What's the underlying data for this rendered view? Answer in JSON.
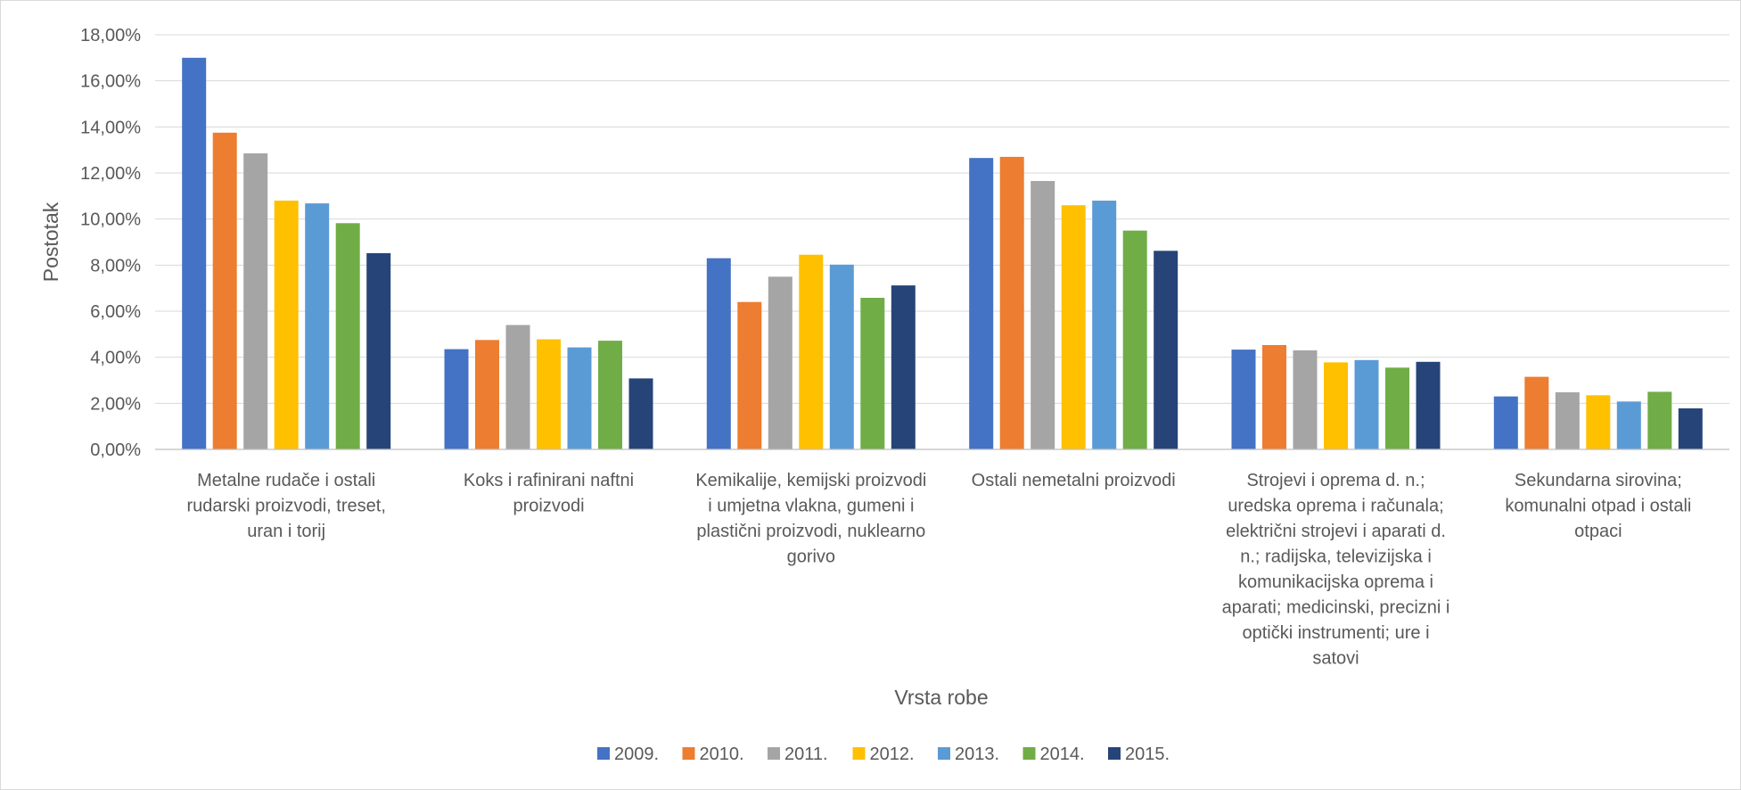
{
  "chart_data": {
    "type": "bar",
    "title": "",
    "xlabel": "Vrsta robe",
    "ylabel": "Postotak",
    "ylim": [
      0,
      18
    ],
    "yticks": [
      "0,00%",
      "2,00%",
      "4,00%",
      "6,00%",
      "8,00%",
      "10,00%",
      "12,00%",
      "14,00%",
      "16,00%",
      "18,00%"
    ],
    "grid": true,
    "legend_position": "bottom",
    "categories": [
      [
        "Metalne rudače i ostali",
        "rudarski proizvodi,  treset,",
        "uran i torij"
      ],
      [
        "Koks i rafinirani naftni",
        "proizvodi"
      ],
      [
        "Kemikalije, kemijski proizvodi",
        "i umjetna vlakna, gumeni i",
        "plastični proizvodi, nuklearno",
        "gorivo"
      ],
      [
        "Ostali nemetalni proizvodi"
      ],
      [
        "Strojevi i oprema d. n.;",
        "uredska oprema i računala;",
        "električni strojevi i aparati d.",
        "n.; radijska, televizijska  i",
        "komunikacijska oprema i",
        "aparati; medicinski,  precizni i",
        "optički instrumenti; ure i",
        "satovi"
      ],
      [
        "Sekundarna sirovina;",
        "komunalni otpad i ostali",
        "otpaci"
      ]
    ],
    "series": [
      {
        "name": "2009.",
        "color": "#4472c4",
        "values": [
          17.0,
          4.35,
          8.3,
          12.65,
          4.33,
          2.3
        ]
      },
      {
        "name": "2010.",
        "color": "#ed7d31",
        "values": [
          13.75,
          4.75,
          6.4,
          12.7,
          4.53,
          3.15
        ]
      },
      {
        "name": "2011.",
        "color": "#a5a5a5",
        "values": [
          12.85,
          5.4,
          7.5,
          11.65,
          4.3,
          2.48
        ]
      },
      {
        "name": "2012.",
        "color": "#ffc000",
        "values": [
          10.8,
          4.78,
          8.45,
          10.6,
          3.78,
          2.35
        ]
      },
      {
        "name": "2013.",
        "color": "#5b9bd5",
        "values": [
          10.68,
          4.43,
          8.02,
          10.8,
          3.88,
          2.08
        ]
      },
      {
        "name": "2014.",
        "color": "#70ad47",
        "values": [
          9.82,
          4.72,
          6.58,
          9.5,
          3.55,
          2.5
        ]
      },
      {
        "name": "2015.",
        "color": "#264478",
        "values": [
          8.52,
          3.08,
          7.12,
          8.62,
          3.8,
          1.78
        ]
      }
    ]
  }
}
